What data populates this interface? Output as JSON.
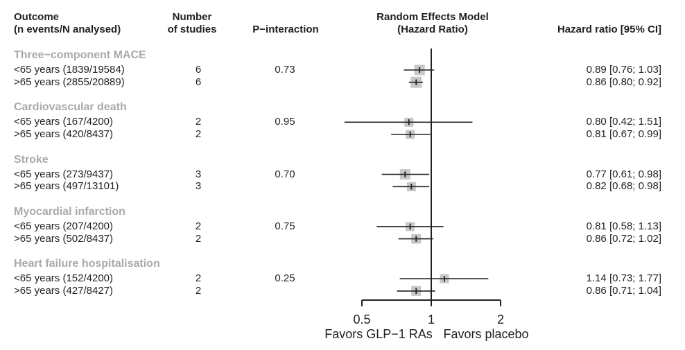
{
  "colors": {
    "text": "#231f20",
    "group_label": "#a7a9ac",
    "square": "#c6c7c9",
    "line": "#231f20"
  },
  "columns": {
    "outcome_line1": "Outcome",
    "outcome_line2": "(n events/N analysed)",
    "n_studies_line1": "Number",
    "n_studies_line2": "of studies",
    "p_interaction": "P−interaction",
    "model_line1": "Random Effects Model",
    "model_line2": "(Hazard Ratio)",
    "hr_ci": "Hazard ratio [95% CI]"
  },
  "chart_data": {
    "type": "forest",
    "title": "Random Effects Model (Hazard Ratio)",
    "effect_measure": "Hazard Ratio",
    "x_scale": "log",
    "xlim": [
      0.5,
      2
    ],
    "axis": {
      "tick_values": [
        0.5,
        1,
        2
      ],
      "tick_labels": [
        "0.5",
        "1",
        "2"
      ],
      "ref_line": 1,
      "left_favor": "Favors GLP−1 RAs",
      "right_favor": "Favors placebo"
    },
    "groups": [
      {
        "name": "Three−component MACE",
        "rows": [
          {
            "label": "<65 years (1839/19584)",
            "n_studies": "6",
            "p_interaction": "0.73",
            "hr": 0.89,
            "ci": [
              0.76,
              1.03
            ],
            "hr_text": "0.89 [0.76; 1.03]",
            "size": 15
          },
          {
            "label": ">65 years (2855/20889)",
            "n_studies": "6",
            "hr": 0.86,
            "ci": [
              0.8,
              0.92
            ],
            "hr_text": "0.86 [0.80; 0.92]",
            "size": 16
          }
        ]
      },
      {
        "name": "Cardiovascular death",
        "rows": [
          {
            "label": "<65 years (167/4200)",
            "n_studies": "2",
            "p_interaction": "0.95",
            "hr": 0.8,
            "ci": [
              0.42,
              1.51
            ],
            "hr_text": "0.80 [0.42; 1.51]",
            "size": 13
          },
          {
            "label": ">65 years (420/8437)",
            "n_studies": "2",
            "hr": 0.81,
            "ci": [
              0.67,
              0.99
            ],
            "hr_text": "0.81 [0.67; 0.99]",
            "size": 13
          }
        ]
      },
      {
        "name": "Stroke",
        "rows": [
          {
            "label": "<65 years (273/9437)",
            "n_studies": "3",
            "p_interaction": "0.70",
            "hr": 0.77,
            "ci": [
              0.61,
              0.98
            ],
            "hr_text": "0.77 [0.61; 0.98]",
            "size": 15
          },
          {
            "label": ">65 years (497/13101)",
            "n_studies": "3",
            "hr": 0.82,
            "ci": [
              0.68,
              0.98
            ],
            "hr_text": "0.82 [0.68; 0.98]",
            "size": 13
          }
        ]
      },
      {
        "name": "Myocardial infarction",
        "rows": [
          {
            "label": "<65 years (207/4200)",
            "n_studies": "2",
            "p_interaction": "0.75",
            "hr": 0.81,
            "ci": [
              0.58,
              1.13
            ],
            "hr_text": "0.81 [0.58; 1.13]",
            "size": 13
          },
          {
            "label": ">65 years (502/8437)",
            "n_studies": "2",
            "hr": 0.86,
            "ci": [
              0.72,
              1.02
            ],
            "hr_text": "0.86 [0.72; 1.02]",
            "size": 14
          }
        ]
      },
      {
        "name": "Heart failure hospitalisation",
        "rows": [
          {
            "label": "<65 years (152/4200)",
            "n_studies": "2",
            "p_interaction": "0.25",
            "hr": 1.14,
            "ci": [
              0.73,
              1.77
            ],
            "hr_text": "1.14 [0.73; 1.77]",
            "size": 13
          },
          {
            "label": ">65 years (427/8427)",
            "n_studies": "2",
            "hr": 0.86,
            "ci": [
              0.71,
              1.04
            ],
            "hr_text": "0.86 [0.71; 1.04]",
            "size": 14
          }
        ]
      }
    ]
  }
}
